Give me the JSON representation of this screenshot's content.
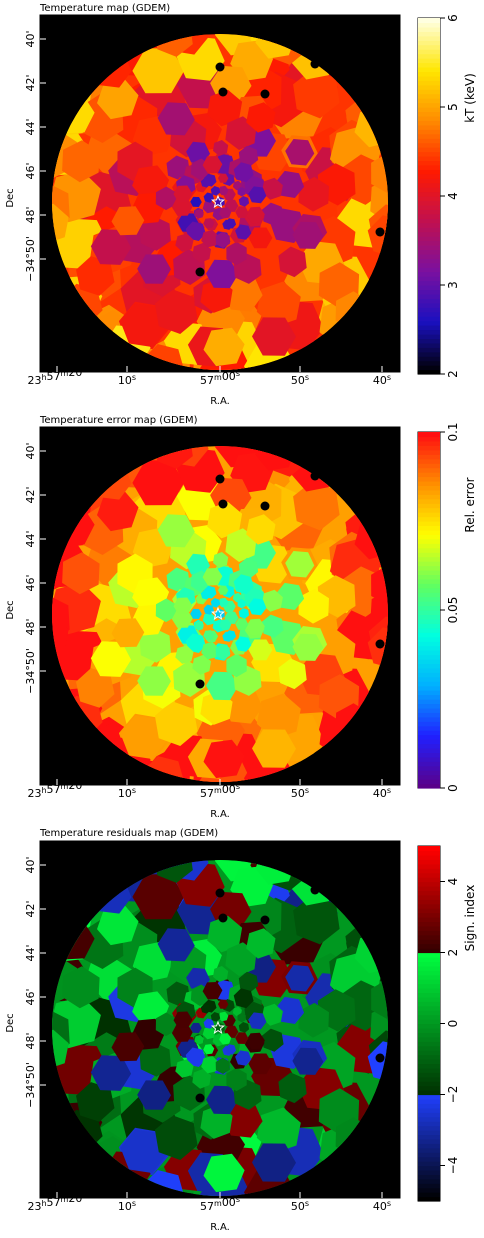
{
  "panels": [
    {
      "id": "temperature",
      "title": "Temperature map (GDEM)",
      "xlabel": "R.A.",
      "ylabel": "Dec",
      "colorbar": {
        "label": "kT (keV)",
        "range": [
          2,
          6
        ],
        "ticks": [
          {
            "value": 2,
            "label": "2"
          },
          {
            "value": 3,
            "label": "3"
          },
          {
            "value": 4,
            "label": "4"
          },
          {
            "value": 5,
            "label": "5"
          },
          {
            "value": 6,
            "label": "6"
          }
        ],
        "colormap": "heat",
        "stops": [
          "#000000",
          "#1a10c0",
          "#7a10a0",
          "#c01050",
          "#ff1a00",
          "#ff8a00",
          "#ffe600",
          "#ffffe0"
        ]
      }
    },
    {
      "id": "error",
      "title": "Temperature error map (GDEM)",
      "xlabel": "R.A.",
      "ylabel": "Dec",
      "colorbar": {
        "label": "Rel. error",
        "range": [
          0,
          0.1
        ],
        "ticks": [
          {
            "value": 0,
            "label": "0"
          },
          {
            "value": 0.05,
            "label": "0.05"
          },
          {
            "value": 0.1,
            "label": "0.1"
          }
        ],
        "colormap": "rainbow",
        "stops": [
          "#5a008a",
          "#2020ff",
          "#00b0ff",
          "#00ffe0",
          "#60ff60",
          "#ffff00",
          "#ff9000",
          "#ff1010"
        ]
      }
    },
    {
      "id": "residuals",
      "title": "Temperature residuals map (GDEM)",
      "xlabel": "R.A.",
      "ylabel": "Dec",
      "colorbar": {
        "label": "Sign. index",
        "range": [
          -5,
          5
        ],
        "ticks": [
          {
            "value": -4,
            "label": "−4"
          },
          {
            "value": -2,
            "label": "−2"
          },
          {
            "value": 0,
            "label": "0"
          },
          {
            "value": 2,
            "label": "2"
          },
          {
            "value": 4,
            "label": "4"
          }
        ],
        "colormap": "sign",
        "stops": [
          "#000000",
          "#2040ff",
          "#003000",
          "#00ff40",
          "#300000",
          "#ff0000"
        ]
      }
    }
  ],
  "axes": {
    "ra_ticks": [
      {
        "value": 0.0,
        "label": "23h57m20s",
        "h": "23",
        "m": "57",
        "s": "20"
      },
      {
        "value": 0.25,
        "label": "10s",
        "s": "10"
      },
      {
        "value": 0.5,
        "label": "57m00s",
        "m": "57",
        "s": "00"
      },
      {
        "value": 0.75,
        "label": "50s",
        "s": "50"
      },
      {
        "value": 1.0,
        "label": "40s",
        "s": "40"
      }
    ],
    "dec_ticks": [
      {
        "value": 40,
        "label": "40'"
      },
      {
        "value": 42,
        "label": "42'"
      },
      {
        "value": 44,
        "label": "44'"
      },
      {
        "value": 46,
        "label": "46'"
      },
      {
        "value": 48,
        "label": "48'"
      },
      {
        "value": 50,
        "label": "−34°50'"
      }
    ]
  },
  "colors": {
    "background": "#000000",
    "frame": "#000000"
  }
}
